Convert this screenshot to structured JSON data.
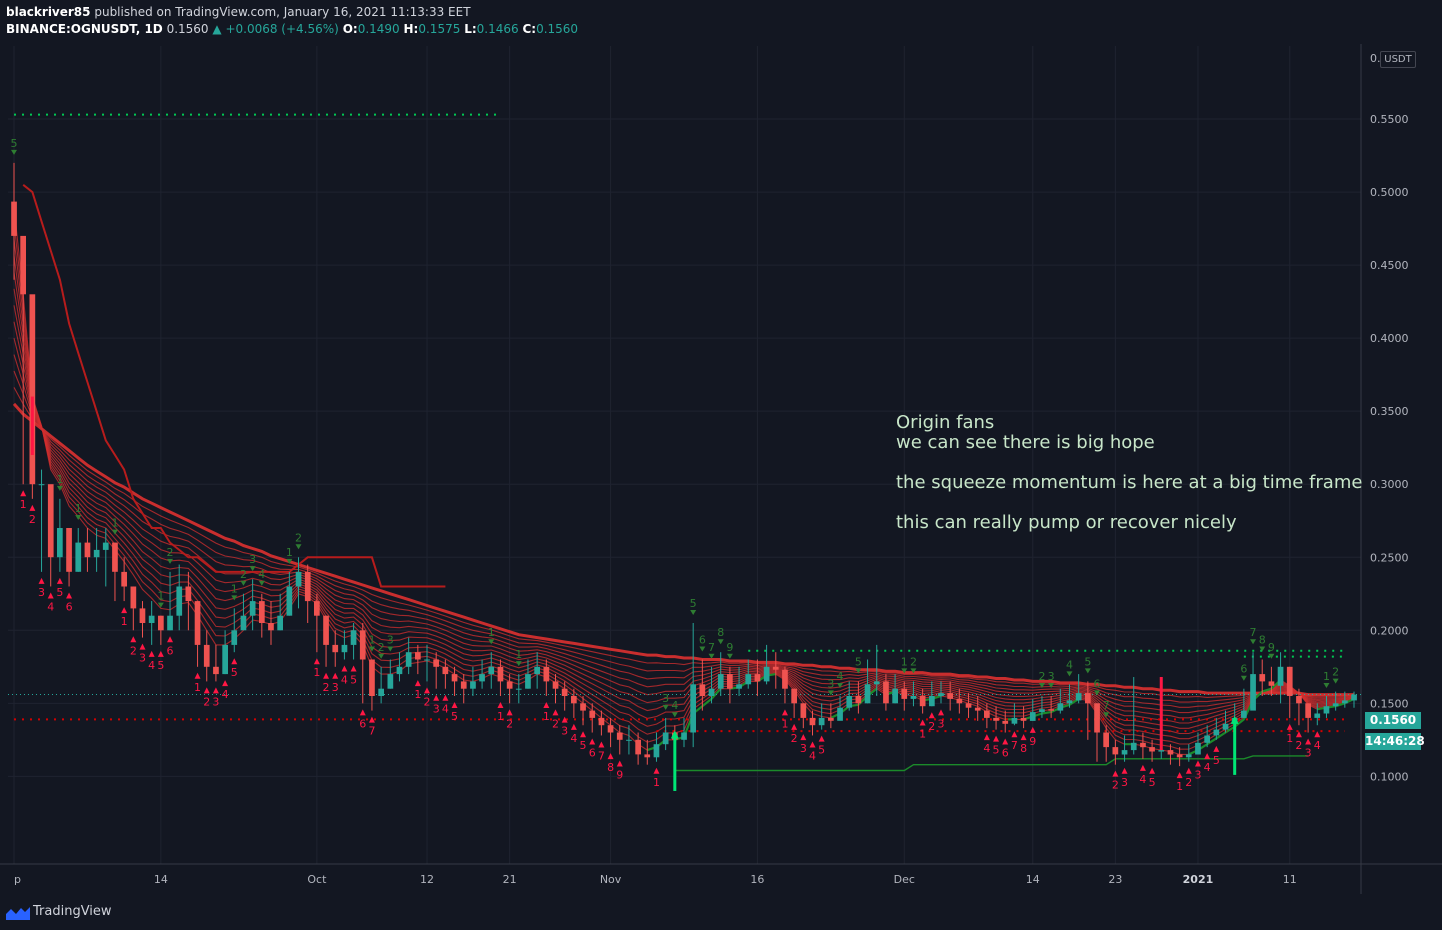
{
  "header": {
    "author": "blackriver85",
    "published_text": "published on TradingView.com, January 16, 2021 11:13:33 EET",
    "symbol": "BINANCE:OGNUSDT, 1D",
    "last_price": "0.1560",
    "change": "▲ +0.0068 (+4.56%)",
    "o_label": "O:",
    "o_value": "0.1490",
    "h_label": "H:",
    "h_value": "0.1575",
    "l_label": "L:",
    "l_value": "0.1466",
    "c_label": "C:",
    "c_value": "0.1560"
  },
  "annotation": {
    "line1": "Origin fans",
    "line2": "we can see there is big hope",
    "line3": "the squeeze momentum is here at a big time frame",
    "line4": "this can really pump or recover nicely"
  },
  "price_axis": {
    "currency_badge": "USDT",
    "top_label": "0.",
    "price_tag": "0.1560",
    "countdown_tag": "14:46:28"
  },
  "footer": {
    "brand": "TradingView"
  },
  "colors": {
    "bg": "#131722",
    "bull": "#26a69a",
    "bear": "#ef5350",
    "ribbon": "#d32f2f",
    "signal_green": "#00e676",
    "text": "#d1d4dc"
  },
  "chart_data": {
    "type": "candlestick",
    "y_ticks": [
      0.55,
      0.5,
      0.45,
      0.4,
      0.35,
      0.3,
      0.25,
      0.2,
      0.15,
      0.1
    ],
    "y_tick_labels": [
      "0.5500",
      "0.5000",
      "0.4500",
      "0.4000",
      "0.3500",
      "0.3000",
      "0.2500",
      "0.2000",
      "0.1500",
      "0.1000"
    ],
    "ylim": [
      0.04,
      0.6
    ],
    "x_labels": [
      {
        "i": 0,
        "text": "p"
      },
      {
        "i": 16,
        "text": "14"
      },
      {
        "i": 33,
        "text": "Oct"
      },
      {
        "i": 45,
        "text": "12"
      },
      {
        "i": 54,
        "text": "21"
      },
      {
        "i": 65,
        "text": "Nov"
      },
      {
        "i": 81,
        "text": "16"
      },
      {
        "i": 97,
        "text": "Dec"
      },
      {
        "i": 111,
        "text": "14"
      },
      {
        "i": 120,
        "text": "23"
      },
      {
        "i": 129,
        "text": "2021"
      },
      {
        "i": 139,
        "text": "11"
      }
    ],
    "close": [
      0.47,
      0.43,
      0.3,
      0.3,
      0.25,
      0.27,
      0.24,
      0.26,
      0.25,
      0.255,
      0.26,
      0.24,
      0.23,
      0.215,
      0.205,
      0.21,
      0.2,
      0.21,
      0.23,
      0.22,
      0.19,
      0.175,
      0.17,
      0.19,
      0.2,
      0.21,
      0.22,
      0.205,
      0.2,
      0.21,
      0.23,
      0.24,
      0.22,
      0.21,
      0.19,
      0.185,
      0.19,
      0.2,
      0.18,
      0.155,
      0.16,
      0.17,
      0.175,
      0.185,
      0.18,
      0.18,
      0.175,
      0.17,
      0.165,
      0.16,
      0.165,
      0.17,
      0.175,
      0.165,
      0.16,
      0.16,
      0.17,
      0.175,
      0.165,
      0.16,
      0.155,
      0.15,
      0.145,
      0.14,
      0.135,
      0.13,
      0.125,
      0.125,
      0.115,
      0.113,
      0.122,
      0.13,
      0.125,
      0.13,
      0.163,
      0.155,
      0.16,
      0.17,
      0.16,
      0.163,
      0.17,
      0.165,
      0.175,
      0.173,
      0.16,
      0.15,
      0.14,
      0.135,
      0.14,
      0.138,
      0.147,
      0.155,
      0.15,
      0.163,
      0.165,
      0.15,
      0.16,
      0.153,
      0.155,
      0.148,
      0.155,
      0.157,
      0.153,
      0.15,
      0.147,
      0.145,
      0.14,
      0.138,
      0.136,
      0.14,
      0.138,
      0.144,
      0.146,
      0.145,
      0.15,
      0.152,
      0.157,
      0.15,
      0.13,
      0.12,
      0.115,
      0.118,
      0.123,
      0.12,
      0.117,
      0.118,
      0.115,
      0.113,
      0.115,
      0.123,
      0.128,
      0.132,
      0.136,
      0.14,
      0.145,
      0.17,
      0.165,
      0.162,
      0.175,
      0.155,
      0.15,
      0.14,
      0.143,
      0.148,
      0.15,
      0.152,
      0.156
    ],
    "high": [
      0.52,
      0.45,
      0.36,
      0.31,
      0.27,
      0.29,
      0.26,
      0.27,
      0.27,
      0.27,
      0.27,
      0.26,
      0.25,
      0.23,
      0.22,
      0.22,
      0.21,
      0.24,
      0.245,
      0.24,
      0.22,
      0.2,
      0.19,
      0.2,
      0.215,
      0.225,
      0.235,
      0.225,
      0.22,
      0.225,
      0.24,
      0.25,
      0.245,
      0.225,
      0.21,
      0.2,
      0.2,
      0.205,
      0.205,
      0.18,
      0.175,
      0.18,
      0.185,
      0.195,
      0.19,
      0.19,
      0.185,
      0.18,
      0.175,
      0.17,
      0.175,
      0.18,
      0.185,
      0.18,
      0.17,
      0.17,
      0.18,
      0.185,
      0.18,
      0.17,
      0.165,
      0.16,
      0.155,
      0.15,
      0.145,
      0.14,
      0.135,
      0.135,
      0.13,
      0.125,
      0.13,
      0.14,
      0.135,
      0.14,
      0.205,
      0.18,
      0.175,
      0.185,
      0.175,
      0.175,
      0.18,
      0.18,
      0.19,
      0.185,
      0.175,
      0.16,
      0.15,
      0.145,
      0.15,
      0.15,
      0.155,
      0.165,
      0.165,
      0.18,
      0.19,
      0.17,
      0.17,
      0.165,
      0.165,
      0.16,
      0.165,
      0.165,
      0.165,
      0.16,
      0.157,
      0.155,
      0.15,
      0.148,
      0.145,
      0.15,
      0.148,
      0.153,
      0.155,
      0.155,
      0.16,
      0.163,
      0.17,
      0.165,
      0.15,
      0.135,
      0.125,
      0.128,
      0.168,
      0.13,
      0.125,
      0.125,
      0.122,
      0.12,
      0.122,
      0.13,
      0.135,
      0.14,
      0.145,
      0.15,
      0.16,
      0.185,
      0.18,
      0.175,
      0.185,
      0.175,
      0.16,
      0.15,
      0.15,
      0.155,
      0.158,
      0.158,
      0.158
    ],
    "low": [
      0.44,
      0.3,
      0.29,
      0.24,
      0.23,
      0.24,
      0.23,
      0.24,
      0.24,
      0.24,
      0.23,
      0.22,
      0.22,
      0.2,
      0.195,
      0.19,
      0.19,
      0.2,
      0.2,
      0.2,
      0.175,
      0.165,
      0.165,
      0.17,
      0.185,
      0.2,
      0.2,
      0.195,
      0.19,
      0.2,
      0.21,
      0.215,
      0.205,
      0.185,
      0.175,
      0.175,
      0.18,
      0.18,
      0.15,
      0.145,
      0.15,
      0.16,
      0.165,
      0.17,
      0.17,
      0.165,
      0.16,
      0.16,
      0.155,
      0.15,
      0.155,
      0.16,
      0.16,
      0.155,
      0.15,
      0.15,
      0.16,
      0.16,
      0.155,
      0.15,
      0.145,
      0.14,
      0.135,
      0.13,
      0.128,
      0.12,
      0.115,
      0.115,
      0.108,
      0.108,
      0.11,
      0.118,
      0.118,
      0.12,
      0.12,
      0.145,
      0.15,
      0.155,
      0.15,
      0.155,
      0.16,
      0.155,
      0.163,
      0.16,
      0.15,
      0.14,
      0.133,
      0.128,
      0.132,
      0.133,
      0.14,
      0.145,
      0.143,
      0.15,
      0.155,
      0.145,
      0.15,
      0.145,
      0.148,
      0.143,
      0.148,
      0.15,
      0.145,
      0.143,
      0.14,
      0.138,
      0.133,
      0.132,
      0.13,
      0.135,
      0.133,
      0.138,
      0.14,
      0.14,
      0.143,
      0.147,
      0.15,
      0.125,
      0.11,
      0.11,
      0.108,
      0.11,
      0.115,
      0.112,
      0.11,
      0.112,
      0.108,
      0.107,
      0.11,
      0.115,
      0.12,
      0.125,
      0.13,
      0.135,
      0.14,
      0.155,
      0.155,
      0.155,
      0.15,
      0.14,
      0.135,
      0.13,
      0.135,
      0.14,
      0.145,
      0.147,
      0.147
    ],
    "ema_fast": [
      0.49,
      0.43,
      0.36,
      0.34,
      0.31,
      0.3,
      0.285,
      0.278,
      0.27,
      0.265,
      0.263,
      0.255,
      0.247,
      0.238,
      0.228,
      0.222,
      0.215,
      0.214,
      0.218,
      0.219,
      0.21,
      0.2,
      0.19,
      0.19,
      0.194,
      0.2,
      0.207,
      0.206,
      0.204,
      0.206,
      0.215,
      0.225,
      0.223,
      0.218,
      0.207,
      0.198,
      0.195,
      0.197,
      0.19,
      0.175,
      0.17,
      0.17,
      0.172,
      0.177,
      0.178,
      0.179,
      0.177,
      0.174,
      0.17,
      0.166,
      0.165,
      0.167,
      0.17,
      0.168,
      0.165,
      0.163,
      0.166,
      0.17,
      0.168,
      0.164,
      0.16,
      0.155,
      0.15,
      0.145,
      0.14,
      0.135,
      0.13,
      0.128,
      0.122,
      0.118,
      0.12,
      0.125,
      0.125,
      0.127,
      0.143,
      0.148,
      0.153,
      0.16,
      0.16,
      0.161,
      0.165,
      0.165,
      0.169,
      0.17,
      0.166,
      0.159,
      0.15,
      0.143,
      0.141,
      0.14,
      0.143,
      0.148,
      0.149,
      0.155,
      0.16,
      0.156,
      0.158,
      0.156,
      0.155,
      0.152,
      0.153,
      0.155,
      0.154,
      0.152,
      0.15,
      0.148,
      0.144,
      0.141,
      0.139,
      0.139,
      0.139,
      0.141,
      0.143,
      0.144,
      0.147,
      0.149,
      0.153,
      0.152,
      0.143,
      0.133,
      0.125,
      0.122,
      0.122,
      0.121,
      0.119,
      0.118,
      0.117,
      0.115,
      0.115,
      0.118,
      0.122,
      0.126,
      0.13,
      0.134,
      0.139,
      0.152,
      0.158,
      0.16,
      0.166,
      0.162,
      0.157,
      0.149,
      0.146,
      0.147,
      0.148,
      0.15,
      0.153
    ],
    "ema_slow": [
      0.355,
      0.348,
      0.343,
      0.338,
      0.333,
      0.328,
      0.323,
      0.318,
      0.313,
      0.309,
      0.305,
      0.301,
      0.298,
      0.294,
      0.29,
      0.287,
      0.284,
      0.281,
      0.278,
      0.275,
      0.272,
      0.269,
      0.266,
      0.263,
      0.261,
      0.258,
      0.256,
      0.254,
      0.251,
      0.249,
      0.247,
      0.245,
      0.243,
      0.241,
      0.239,
      0.237,
      0.235,
      0.233,
      0.231,
      0.229,
      0.227,
      0.225,
      0.223,
      0.221,
      0.219,
      0.217,
      0.215,
      0.213,
      0.211,
      0.209,
      0.207,
      0.205,
      0.203,
      0.201,
      0.199,
      0.197,
      0.196,
      0.195,
      0.194,
      0.193,
      0.192,
      0.191,
      0.19,
      0.189,
      0.188,
      0.187,
      0.186,
      0.185,
      0.184,
      0.183,
      0.183,
      0.182,
      0.182,
      0.181,
      0.181,
      0.18,
      0.18,
      0.18,
      0.179,
      0.179,
      0.179,
      0.178,
      0.178,
      0.178,
      0.177,
      0.177,
      0.176,
      0.176,
      0.175,
      0.175,
      0.174,
      0.174,
      0.173,
      0.173,
      0.173,
      0.172,
      0.172,
      0.171,
      0.171,
      0.171,
      0.17,
      0.17,
      0.17,
      0.169,
      0.169,
      0.168,
      0.168,
      0.167,
      0.167,
      0.166,
      0.166,
      0.165,
      0.165,
      0.165,
      0.164,
      0.164,
      0.164,
      0.163,
      0.163,
      0.162,
      0.162,
      0.161,
      0.161,
      0.16,
      0.16,
      0.159,
      0.159,
      0.158,
      0.158,
      0.158,
      0.157,
      0.157,
      0.157,
      0.157,
      0.157,
      0.157,
      0.157,
      0.157,
      0.157,
      0.157,
      0.157,
      0.156,
      0.156,
      0.156,
      0.156,
      0.156,
      0.156
    ],
    "trail": [
      0.505,
      0.5,
      0.48,
      0.46,
      0.44,
      0.41,
      0.39,
      0.37,
      0.35,
      0.33,
      0.32,
      0.31,
      0.29,
      0.28,
      0.27,
      0.27,
      0.26,
      0.255,
      0.25,
      0.25,
      0.245,
      0.24,
      0.24,
      0.24,
      0.24,
      0.24,
      0.24,
      0.24,
      0.24,
      0.24,
      0.245,
      0.25,
      0.25,
      0.25,
      0.25,
      0.25,
      0.25,
      0.25,
      0.25,
      0.23,
      0.23,
      0.23,
      0.23,
      0.23,
      0.23,
      0.23,
      0.23
    ],
    "green_step": [
      0.104,
      0.104,
      0.104,
      0.104,
      0.104,
      0.104,
      0.104,
      0.104,
      0.104,
      0.104,
      0.104,
      0.104,
      0.104,
      0.104,
      0.104,
      0.104,
      0.104,
      0.104,
      0.104,
      0.104,
      0.104,
      0.104,
      0.104,
      0.104,
      0.104,
      0.104,
      0.108,
      0.108,
      0.108,
      0.108,
      0.108,
      0.108,
      0.108,
      0.108,
      0.108,
      0.108,
      0.108,
      0.108,
      0.108,
      0.108,
      0.108,
      0.108,
      0.108,
      0.108,
      0.108,
      0.108,
      0.108,
      0.108,
      0.112,
      0.112,
      0.112,
      0.112,
      0.112,
      0.112,
      0.112,
      0.112,
      0.112,
      0.112,
      0.112,
      0.112,
      0.112,
      0.112,
      0.112,
      0.114,
      0.114,
      0.114,
      0.114,
      0.114,
      0.114,
      0.114
    ],
    "dotted_levels": [
      {
        "price": 0.553,
        "from": 0,
        "to": 53,
        "color": "#00c853"
      },
      {
        "price": 0.186,
        "from": 80,
        "to": 145,
        "color": "#00c853"
      },
      {
        "price": 0.182,
        "from": 134,
        "to": 145,
        "color": "#00c853"
      },
      {
        "price": 0.139,
        "from": 0,
        "to": 145,
        "color": "#d50000"
      },
      {
        "price": 0.131,
        "from": 70,
        "to": 145,
        "color": "#d50000"
      }
    ],
    "signal_arrows": [
      {
        "i": 72,
        "from": 0.09,
        "to": 0.13
      },
      {
        "i": 133,
        "from": 0.101,
        "to": 0.14
      }
    ],
    "bear_spikes": [
      {
        "i": 2,
        "from": 0.36,
        "to": 0.32
      },
      {
        "i": 125,
        "from": 0.168,
        "to": 0.118
      }
    ],
    "td_up_counts": [
      {
        "i": 0,
        "n": "5"
      },
      {
        "i": 5,
        "n": "1"
      },
      {
        "i": 7,
        "n": "1"
      },
      {
        "i": 11,
        "n": "1"
      },
      {
        "i": 16,
        "n": "1"
      },
      {
        "i": 17,
        "n": "2"
      },
      {
        "i": 24,
        "n": "1"
      },
      {
        "i": 25,
        "n": "2"
      },
      {
        "i": 26,
        "n": "3"
      },
      {
        "i": 27,
        "n": "4"
      },
      {
        "i": 30,
        "n": "1"
      },
      {
        "i": 31,
        "n": "2"
      },
      {
        "i": 39,
        "n": "1"
      },
      {
        "i": 40,
        "n": "2"
      },
      {
        "i": 41,
        "n": "3"
      },
      {
        "i": 52,
        "n": "1"
      },
      {
        "i": 55,
        "n": "1"
      },
      {
        "i": 71,
        "n": "3"
      },
      {
        "i": 72,
        "n": "4"
      },
      {
        "i": 74,
        "n": "5"
      },
      {
        "i": 75,
        "n": "6"
      },
      {
        "i": 76,
        "n": "7"
      },
      {
        "i": 77,
        "n": "8"
      },
      {
        "i": 78,
        "n": "9"
      },
      {
        "i": 89,
        "n": "3"
      },
      {
        "i": 90,
        "n": "4"
      },
      {
        "i": 92,
        "n": "5"
      },
      {
        "i": 97,
        "n": "1"
      },
      {
        "i": 98,
        "n": "2"
      },
      {
        "i": 112,
        "n": "2"
      },
      {
        "i": 113,
        "n": "3"
      },
      {
        "i": 115,
        "n": "4"
      },
      {
        "i": 117,
        "n": "5"
      },
      {
        "i": 118,
        "n": "6"
      },
      {
        "i": 119,
        "n": "7"
      },
      {
        "i": 134,
        "n": "6"
      },
      {
        "i": 135,
        "n": "7"
      },
      {
        "i": 136,
        "n": "8"
      },
      {
        "i": 137,
        "n": "9"
      },
      {
        "i": 143,
        "n": "1"
      },
      {
        "i": 144,
        "n": "2"
      }
    ],
    "td_down_counts": [
      {
        "i": 1,
        "n": "1"
      },
      {
        "i": 2,
        "n": "2"
      },
      {
        "i": 3,
        "n": "3"
      },
      {
        "i": 4,
        "n": "4"
      },
      {
        "i": 5,
        "n": "5"
      },
      {
        "i": 6,
        "n": "6"
      },
      {
        "i": 12,
        "n": "1"
      },
      {
        "i": 13,
        "n": "2"
      },
      {
        "i": 14,
        "n": "3"
      },
      {
        "i": 15,
        "n": "4"
      },
      {
        "i": 16,
        "n": "5"
      },
      {
        "i": 17,
        "n": "6"
      },
      {
        "i": 20,
        "n": "1"
      },
      {
        "i": 21,
        "n": "2"
      },
      {
        "i": 22,
        "n": "3"
      },
      {
        "i": 23,
        "n": "4"
      },
      {
        "i": 24,
        "n": "5"
      },
      {
        "i": 33,
        "n": "1"
      },
      {
        "i": 34,
        "n": "2"
      },
      {
        "i": 35,
        "n": "3"
      },
      {
        "i": 36,
        "n": "4"
      },
      {
        "i": 37,
        "n": "5"
      },
      {
        "i": 38,
        "n": "6"
      },
      {
        "i": 39,
        "n": "7"
      },
      {
        "i": 44,
        "n": "1"
      },
      {
        "i": 45,
        "n": "2"
      },
      {
        "i": 46,
        "n": "3"
      },
      {
        "i": 47,
        "n": "4"
      },
      {
        "i": 48,
        "n": "5"
      },
      {
        "i": 53,
        "n": "1"
      },
      {
        "i": 54,
        "n": "2"
      },
      {
        "i": 58,
        "n": "1"
      },
      {
        "i": 59,
        "n": "2"
      },
      {
        "i": 60,
        "n": "3"
      },
      {
        "i": 61,
        "n": "4"
      },
      {
        "i": 62,
        "n": "5"
      },
      {
        "i": 63,
        "n": "6"
      },
      {
        "i": 64,
        "n": "7"
      },
      {
        "i": 65,
        "n": "8"
      },
      {
        "i": 66,
        "n": "9"
      },
      {
        "i": 70,
        "n": "1"
      },
      {
        "i": 84,
        "n": "1"
      },
      {
        "i": 85,
        "n": "2"
      },
      {
        "i": 86,
        "n": "3"
      },
      {
        "i": 87,
        "n": "4"
      },
      {
        "i": 88,
        "n": "5"
      },
      {
        "i": 99,
        "n": "1"
      },
      {
        "i": 100,
        "n": "2"
      },
      {
        "i": 101,
        "n": "3"
      },
      {
        "i": 106,
        "n": "4"
      },
      {
        "i": 107,
        "n": "5"
      },
      {
        "i": 108,
        "n": "6"
      },
      {
        "i": 109,
        "n": "7"
      },
      {
        "i": 110,
        "n": "8"
      },
      {
        "i": 111,
        "n": "9"
      },
      {
        "i": 120,
        "n": "2"
      },
      {
        "i": 121,
        "n": "3"
      },
      {
        "i": 123,
        "n": "4"
      },
      {
        "i": 124,
        "n": "5"
      },
      {
        "i": 127,
        "n": "1"
      },
      {
        "i": 128,
        "n": "2"
      },
      {
        "i": 129,
        "n": "3"
      },
      {
        "i": 130,
        "n": "4"
      },
      {
        "i": 131,
        "n": "5"
      },
      {
        "i": 139,
        "n": "1"
      },
      {
        "i": 140,
        "n": "2"
      },
      {
        "i": 141,
        "n": "3"
      },
      {
        "i": 142,
        "n": "4"
      }
    ]
  }
}
